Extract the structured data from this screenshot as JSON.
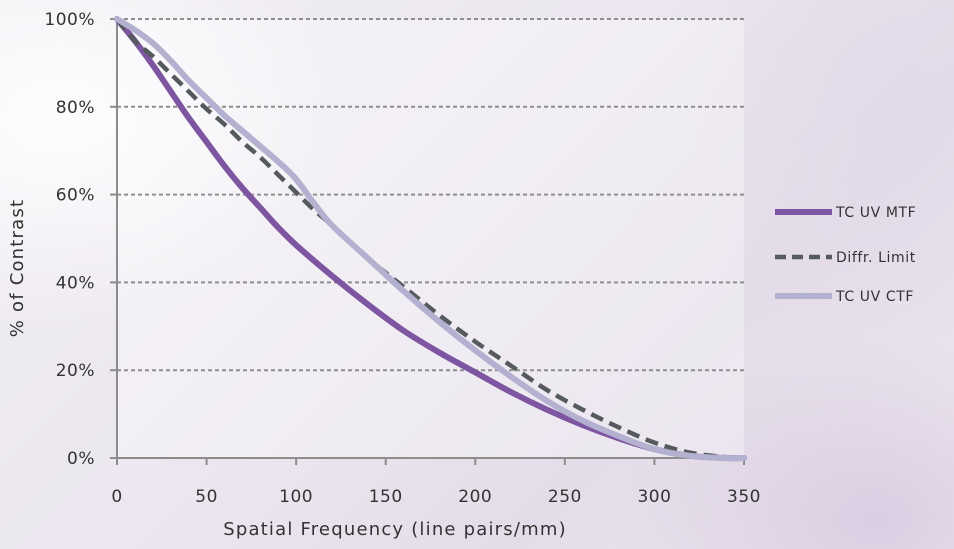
{
  "chart_data": {
    "type": "line",
    "title": "",
    "xlabel": "Spatial Frequency (line pairs/mm)",
    "ylabel": "% of Contrast",
    "xlim": [
      0,
      350
    ],
    "ylim": [
      0,
      100
    ],
    "x_ticks": [
      0,
      50,
      100,
      150,
      200,
      250,
      300,
      350
    ],
    "x_tick_labels": [
      "0",
      "50",
      "100",
      "150",
      "200",
      "250",
      "300",
      "350"
    ],
    "y_ticks": [
      0,
      20,
      40,
      60,
      80,
      100
    ],
    "y_tick_labels": [
      "0%",
      "20%",
      "40%",
      "60%",
      "80%",
      "100%"
    ],
    "grid": "horizontal dashed",
    "legend_position": "right",
    "series": [
      {
        "name": "TC UV MTF",
        "color": "#7d55a0",
        "style": "solid",
        "points": [
          [
            0,
            100
          ],
          [
            10,
            95
          ],
          [
            20,
            89.5
          ],
          [
            30,
            83.5
          ],
          [
            40,
            77.5
          ],
          [
            50,
            72
          ],
          [
            60,
            66.5
          ],
          [
            70,
            61.5
          ],
          [
            80,
            57
          ],
          [
            90,
            52.5
          ],
          [
            100,
            48.5
          ],
          [
            120,
            41.5
          ],
          [
            140,
            35
          ],
          [
            160,
            29
          ],
          [
            180,
            24
          ],
          [
            200,
            19.5
          ],
          [
            220,
            15
          ],
          [
            240,
            11
          ],
          [
            260,
            7.5
          ],
          [
            280,
            4.5
          ],
          [
            300,
            2
          ],
          [
            320,
            0.5
          ],
          [
            340,
            0
          ],
          [
            350,
            0
          ]
        ]
      },
      {
        "name": "Diffr. Limit",
        "color": "#545a5e",
        "style": "dashed",
        "points": [
          [
            0,
            100
          ],
          [
            10,
            95
          ],
          [
            20,
            91.5
          ],
          [
            30,
            87.5
          ],
          [
            40,
            83.5
          ],
          [
            50,
            79.5
          ],
          [
            60,
            76
          ],
          [
            70,
            72
          ],
          [
            80,
            68.5
          ],
          [
            90,
            64.5
          ],
          [
            100,
            60.5
          ],
          [
            110,
            56.5
          ],
          [
            120,
            53
          ],
          [
            140,
            45.5
          ],
          [
            160,
            39
          ],
          [
            180,
            32.5
          ],
          [
            200,
            26.5
          ],
          [
            220,
            21
          ],
          [
            240,
            15.5
          ],
          [
            260,
            11
          ],
          [
            280,
            7
          ],
          [
            300,
            3.5
          ],
          [
            320,
            1.2
          ],
          [
            340,
            0.2
          ],
          [
            350,
            0
          ]
        ]
      },
      {
        "name": "TC UV CTF",
        "color": "#b3b1cf",
        "style": "solid",
        "points": [
          [
            0,
            100
          ],
          [
            10,
            97.5
          ],
          [
            20,
            94.5
          ],
          [
            30,
            90.5
          ],
          [
            40,
            86
          ],
          [
            50,
            82
          ],
          [
            60,
            78
          ],
          [
            70,
            74.5
          ],
          [
            80,
            71
          ],
          [
            90,
            67.5
          ],
          [
            100,
            63.5
          ],
          [
            110,
            58
          ],
          [
            120,
            53
          ],
          [
            140,
            45.5
          ],
          [
            160,
            38
          ],
          [
            180,
            31
          ],
          [
            200,
            24.5
          ],
          [
            220,
            18.5
          ],
          [
            240,
            13
          ],
          [
            260,
            8.5
          ],
          [
            280,
            5
          ],
          [
            300,
            2
          ],
          [
            320,
            0.5
          ],
          [
            340,
            0
          ],
          [
            350,
            0
          ]
        ]
      }
    ]
  }
}
